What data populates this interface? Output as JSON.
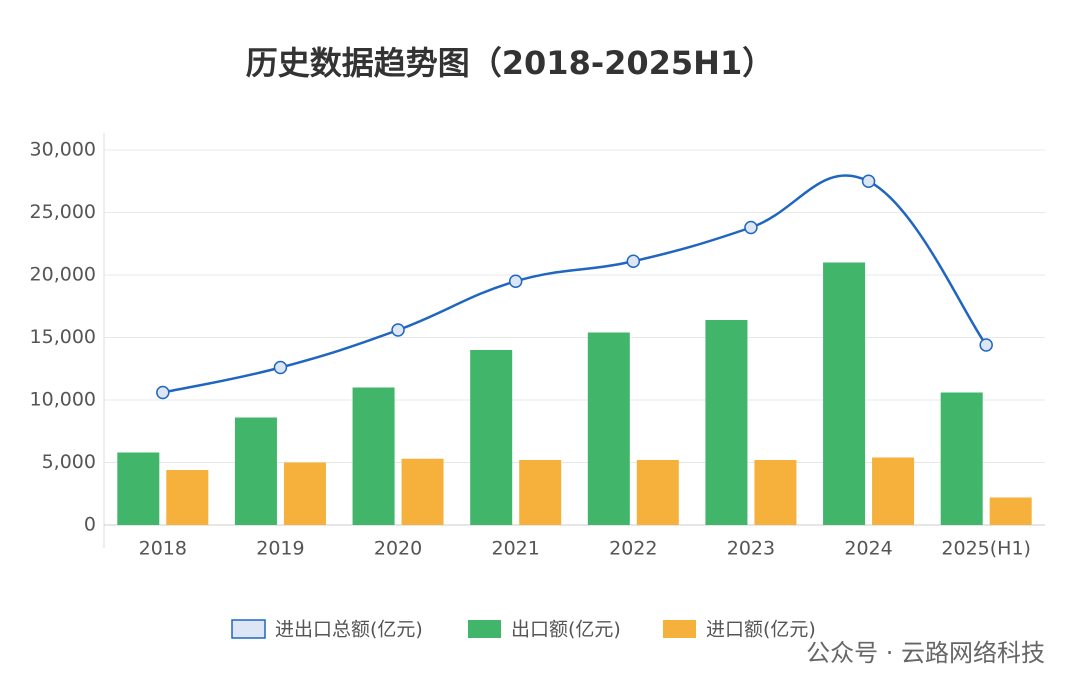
{
  "chart_data": {
    "type": "bar",
    "title": "历史数据趋势图（2018-2025H1）",
    "categories": [
      "2018",
      "2019",
      "2020",
      "2021",
      "2022",
      "2023",
      "2024",
      "2025(H1)"
    ],
    "series": [
      {
        "name": "进出口总额(亿元)",
        "type": "line",
        "color": "#1f66c1",
        "values": [
          10600,
          12600,
          15600,
          19500,
          21100,
          23800,
          27500,
          14400
        ]
      },
      {
        "name": "出口额(亿元)",
        "type": "bar",
        "color": "#41b66a",
        "values": [
          5800,
          8600,
          11000,
          14000,
          15400,
          16400,
          21000,
          10600
        ]
      },
      {
        "name": "进口额(亿元)",
        "type": "bar",
        "color": "#f5b13b",
        "values": [
          4400,
          5000,
          5300,
          5200,
          5200,
          5200,
          5400,
          2200
        ]
      }
    ],
    "ylim": [
      0,
      30000
    ],
    "yticks": [
      0,
      {
        "value": 5000,
        "label": "5,000"
      },
      {
        "value": 10000,
        "label": "10,000"
      },
      {
        "value": 15000,
        "label": "15,000"
      },
      {
        "value": 20000,
        "label": "20,000"
      },
      {
        "value": 25000,
        "label": "25,000"
      },
      {
        "value": 30000,
        "label": "30,000"
      }
    ],
    "grid": true,
    "legend": "bottom",
    "watermark": "公众号 · 云路网络科技"
  }
}
